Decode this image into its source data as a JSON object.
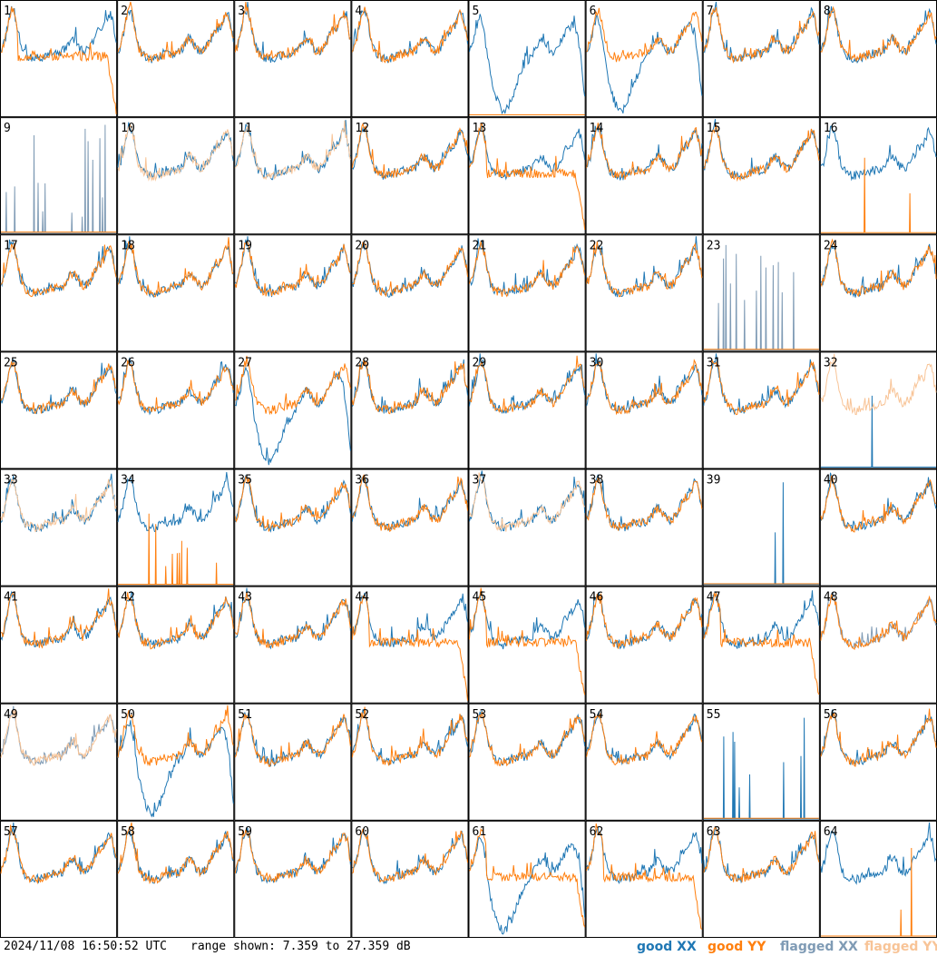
{
  "chart_data": {
    "type": "line",
    "title": "",
    "xlabel": "",
    "ylabel": "",
    "grid": "8x8 small multiples, one panel per tile",
    "ylim": [
      7.359,
      27.359
    ],
    "ylim_unit": "dB",
    "panel_labels": [
      "1",
      "2",
      "3",
      "4",
      "5",
      "6",
      "7",
      "8",
      "9",
      "10",
      "11",
      "12",
      "13",
      "14",
      "15",
      "16",
      "17",
      "18",
      "19",
      "20",
      "21",
      "22",
      "23",
      "24",
      "25",
      "26",
      "27",
      "28",
      "29",
      "30",
      "31",
      "32",
      "33",
      "34",
      "35",
      "36",
      "37",
      "38",
      "39",
      "40",
      "41",
      "42",
      "43",
      "44",
      "45",
      "46",
      "47",
      "48",
      "49",
      "50",
      "51",
      "52",
      "53",
      "54",
      "55",
      "56",
      "57",
      "58",
      "59",
      "60",
      "61",
      "62",
      "63",
      "64"
    ],
    "legend": [
      {
        "label": "good XX",
        "color": "#1f77b4"
      },
      {
        "label": "good YY",
        "color": "#ff7f0e"
      },
      {
        "label": "flagged XX",
        "color": "#7f9bb5"
      },
      {
        "label": "flagged YY",
        "color": "#f8c497"
      }
    ],
    "flagged_xx_panels": [
      9,
      23,
      48,
      49
    ],
    "flagged_yy_panels": [
      10,
      11,
      32,
      33,
      37,
      49
    ],
    "anomalous_yy_panels": [
      1,
      13,
      44,
      45,
      47,
      61,
      62
    ],
    "anomalous_xx_panels": [
      5,
      6,
      27,
      50,
      61
    ],
    "spike_xx_panels": [
      39,
      55
    ],
    "spike_yy_panels": [
      16,
      34,
      64
    ],
    "dead_yy_panels": [
      5,
      9,
      23,
      34,
      39,
      55
    ],
    "dead_xx_panels": [
      32
    ]
  },
  "footer": {
    "timestamp": "2024/11/08 16:50:52 UTC",
    "range_text": "range shown: 7.359 to 27.359 dB"
  },
  "colors": {
    "good_xx": "#1f77b4",
    "good_yy": "#ff7f0e",
    "flagged_xx": "#7f9bb5",
    "flagged_yy": "#f8c497"
  }
}
